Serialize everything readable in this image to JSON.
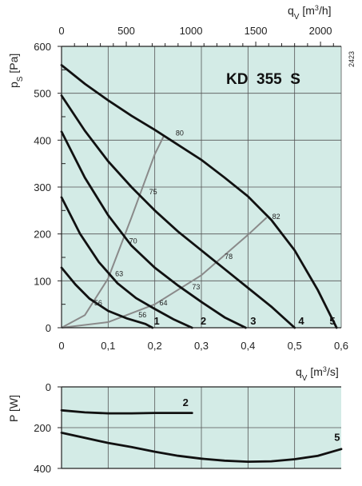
{
  "chart_data": [
    {
      "type": "line",
      "title": "KD  355  S",
      "code": "2423",
      "xlabel_bottom": "q_v [m³/s]",
      "xlabel_top": "q_v [m³/h]",
      "ylabel": "p_s [Pa]",
      "xlim": [
        0,
        0.6
      ],
      "ylim": [
        0,
        600
      ],
      "x_ticks": [
        "0",
        "0,1",
        "0,2",
        "0,3",
        "0,4",
        "0,5",
        "0,6"
      ],
      "x_ticks_top": [
        "0",
        "500",
        "1000",
        "1500",
        "2000"
      ],
      "y_ticks": [
        "0",
        "100",
        "200",
        "300",
        "400",
        "500",
        "600"
      ],
      "grid": true,
      "background": "#d3ebe6",
      "series": [
        {
          "name": "1",
          "x": [
            0,
            0.03,
            0.06,
            0.1,
            0.14,
            0.18,
            0.195
          ],
          "y": [
            128,
            92,
            62,
            36,
            20,
            8,
            0
          ]
        },
        {
          "name": "2",
          "x": [
            0,
            0.04,
            0.08,
            0.12,
            0.16,
            0.2,
            0.24,
            0.28
          ],
          "y": [
            278,
            200,
            140,
            95,
            63,
            40,
            18,
            0
          ]
        },
        {
          "name": "3",
          "x": [
            0,
            0.05,
            0.1,
            0.15,
            0.2,
            0.25,
            0.3,
            0.35,
            0.395
          ],
          "y": [
            418,
            320,
            240,
            175,
            128,
            90,
            55,
            22,
            0
          ]
        },
        {
          "name": "4",
          "x": [
            0,
            0.05,
            0.1,
            0.15,
            0.2,
            0.25,
            0.3,
            0.35,
            0.4,
            0.45,
            0.5
          ],
          "y": [
            495,
            420,
            355,
            300,
            250,
            205,
            165,
            125,
            85,
            45,
            0
          ]
        },
        {
          "name": "5",
          "x": [
            0,
            0.05,
            0.1,
            0.15,
            0.2,
            0.25,
            0.3,
            0.35,
            0.4,
            0.45,
            0.5,
            0.55,
            0.59
          ],
          "y": [
            560,
            520,
            485,
            452,
            422,
            390,
            358,
            320,
            280,
            230,
            165,
            80,
            0
          ]
        }
      ],
      "system_curves": [
        {
          "x": [
            0,
            0.05,
            0.1,
            0.15,
            0.2,
            0.22
          ],
          "y": [
            0,
            27,
            105,
            235,
            370,
            410
          ]
        },
        {
          "x": [
            0,
            0.1,
            0.2,
            0.3,
            0.4,
            0.44
          ],
          "y": [
            0,
            12,
            50,
            112,
            198,
            235
          ]
        }
      ],
      "efficiency_labels": [
        {
          "text": "80",
          "x": 0.245,
          "y": 410
        },
        {
          "text": "75",
          "x": 0.188,
          "y": 285
        },
        {
          "text": "70",
          "x": 0.145,
          "y": 180
        },
        {
          "text": "63",
          "x": 0.115,
          "y": 110
        },
        {
          "text": "56",
          "x": 0.07,
          "y": 48
        },
        {
          "text": "82",
          "x": 0.452,
          "y": 232
        },
        {
          "text": "78",
          "x": 0.35,
          "y": 147
        },
        {
          "text": "73",
          "x": 0.28,
          "y": 82
        },
        {
          "text": "64",
          "x": 0.21,
          "y": 48
        },
        {
          "text": "56",
          "x": 0.165,
          "y": 22
        }
      ],
      "series_labels": [
        {
          "text": "1",
          "x": 0.198,
          "y": 10
        },
        {
          "text": "2",
          "x": 0.298,
          "y": 10
        },
        {
          "text": "3",
          "x": 0.405,
          "y": 10
        },
        {
          "text": "4",
          "x": 0.508,
          "y": 10
        },
        {
          "text": "5",
          "x": 0.575,
          "y": 10
        }
      ]
    },
    {
      "type": "line",
      "ylabel": "P [W]",
      "xlim": [
        0,
        0.6
      ],
      "ylim": [
        400,
        0
      ],
      "y_ticks": [
        "0",
        "200",
        "400"
      ],
      "grid": true,
      "background": "#d3ebe6",
      "series": [
        {
          "name": "2",
          "x": [
            0,
            0.05,
            0.1,
            0.15,
            0.2,
            0.25,
            0.28
          ],
          "y": [
            115,
            125,
            130,
            130,
            128,
            128,
            128
          ]
        },
        {
          "name": "5",
          "x": [
            0,
            0.05,
            0.1,
            0.15,
            0.2,
            0.25,
            0.3,
            0.35,
            0.4,
            0.45,
            0.5,
            0.55,
            0.6
          ],
          "y": [
            225,
            250,
            275,
            295,
            318,
            338,
            352,
            362,
            367,
            365,
            355,
            338,
            305
          ]
        }
      ],
      "series_labels": [
        {
          "text": "2",
          "x": 0.26,
          "y": 95
        },
        {
          "text": "5",
          "x": 0.585,
          "y": 265
        }
      ]
    }
  ]
}
